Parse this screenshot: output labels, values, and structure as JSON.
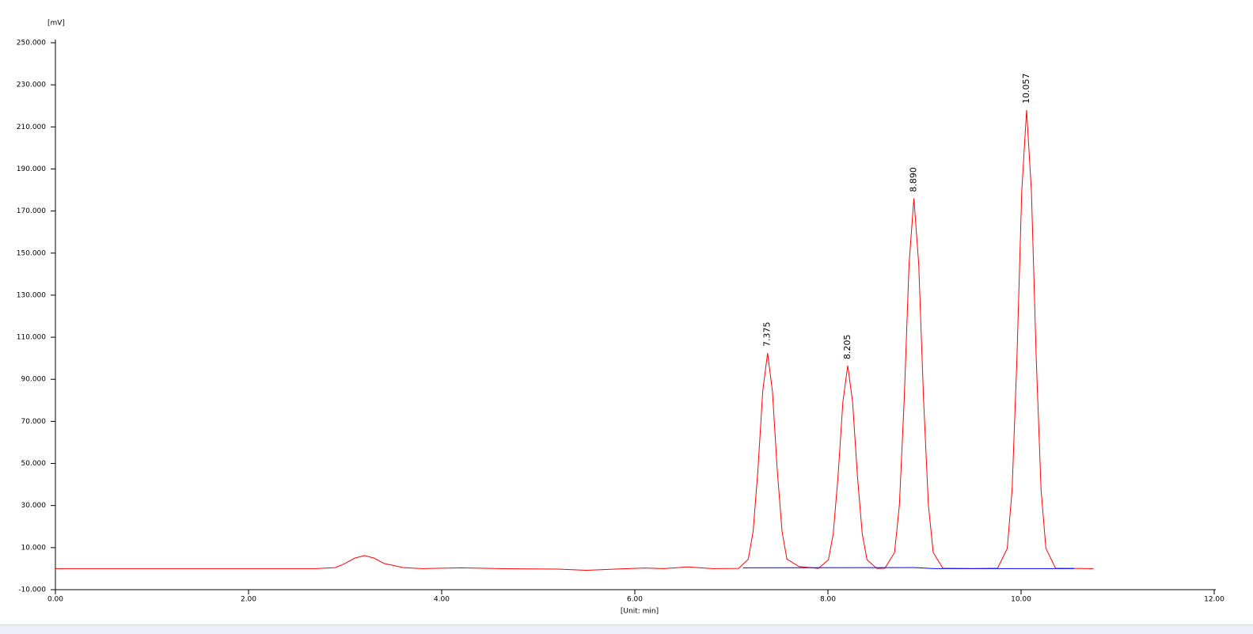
{
  "chart_data": {
    "type": "line",
    "ylabel": "[mV]",
    "xlabel": "[Unit: min]",
    "xlim": [
      0,
      12
    ],
    "ylim": [
      -10,
      250
    ],
    "xticks": [
      {
        "value": 0,
        "label": "0.00"
      },
      {
        "value": 2,
        "label": "2.00"
      },
      {
        "value": 4,
        "label": "4.00"
      },
      {
        "value": 6,
        "label": "6.00"
      },
      {
        "value": 8,
        "label": "8.00"
      },
      {
        "value": 10,
        "label": "10.00"
      },
      {
        "value": 12,
        "label": "12.00"
      }
    ],
    "yticks": [
      {
        "value": -10,
        "label": "-10.000"
      },
      {
        "value": 10,
        "label": "10.000"
      },
      {
        "value": 30,
        "label": "30.000"
      },
      {
        "value": 50,
        "label": "50.000"
      },
      {
        "value": 70,
        "label": "70.000"
      },
      {
        "value": 90,
        "label": "90.000"
      },
      {
        "value": 110,
        "label": "110.000"
      },
      {
        "value": 130,
        "label": "130.000"
      },
      {
        "value": 150,
        "label": "150.000"
      },
      {
        "value": 170,
        "label": "170.000"
      },
      {
        "value": 190,
        "label": "190.000"
      },
      {
        "value": 210,
        "label": "210.000"
      },
      {
        "value": 230,
        "label": "230.000"
      },
      {
        "value": 250,
        "label": "250.000"
      }
    ],
    "series": [
      {
        "color": "#ff0000",
        "x": [
          0,
          2.7,
          2.9,
          3.0,
          3.1,
          3.2,
          3.3,
          3.4,
          3.6,
          3.8,
          4.2,
          4.6,
          5.2,
          5.5,
          5.8,
          6.1,
          6.3,
          6.55,
          6.8,
          7.075,
          7.175,
          7.225,
          7.275,
          7.325,
          7.375,
          7.425,
          7.475,
          7.525,
          7.575,
          7.7,
          7.9,
          8.005,
          8.055,
          8.105,
          8.155,
          8.205,
          8.255,
          8.305,
          8.355,
          8.405,
          8.505,
          8.59,
          8.69,
          8.74,
          8.79,
          8.84,
          8.89,
          8.94,
          8.99,
          9.04,
          9.09,
          9.19,
          9.5,
          9.757,
          9.857,
          9.907,
          9.957,
          10.007,
          10.057,
          10.107,
          10.157,
          10.207,
          10.257,
          10.357,
          10.75
        ],
        "values": [
          0,
          0,
          0.5,
          2.5,
          5,
          6.2,
          5,
          2.5,
          0.5,
          0,
          0.4,
          0,
          -0.2,
          -0.8,
          -0.2,
          0.3,
          0,
          0.8,
          0,
          0.1,
          4.5,
          17.6,
          46.9,
          84.4,
          102.5,
          84.4,
          46.9,
          17.6,
          4.5,
          1,
          0.1,
          4.2,
          16.6,
          44.2,
          79.4,
          96.5,
          79.4,
          44.2,
          16.6,
          4.2,
          0.1,
          0.2,
          7.7,
          30.3,
          80.6,
          144.8,
          176,
          144.8,
          80.6,
          30.3,
          7.7,
          0.2,
          0,
          0.2,
          9.6,
          37.5,
          99.8,
          179.4,
          218,
          179.4,
          99.8,
          37.5,
          9.6,
          0.2,
          0
        ]
      },
      {
        "color": "#0000ff",
        "x": [
          7.12,
          8.9,
          9.1,
          10.55
        ],
        "values": [
          0.4,
          0.5,
          0,
          0
        ]
      }
    ],
    "peak_labels": [
      {
        "value": 7.375,
        "label": "7.375"
      },
      {
        "value": 8.205,
        "label": "8.205"
      },
      {
        "value": 8.89,
        "label": "8.890"
      },
      {
        "value": 10.057,
        "label": "10.057"
      }
    ]
  }
}
